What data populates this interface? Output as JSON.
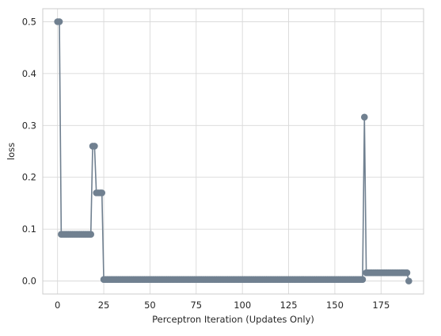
{
  "chart_data": {
    "type": "line",
    "title": "",
    "xlabel": "Perceptron Iteration (Updates Only)",
    "ylabel": "loss",
    "xlim": [
      -8,
      198
    ],
    "ylim": [
      -0.025,
      0.525
    ],
    "xticks": [
      0,
      25,
      50,
      75,
      100,
      125,
      150,
      175
    ],
    "yticks": [
      0.0,
      0.1,
      0.2,
      0.3,
      0.4,
      0.5
    ],
    "grid": true,
    "line_color": "#708090",
    "series": [
      {
        "segments": [
          {
            "from": 0,
            "to": 1,
            "value": 0.5
          },
          {
            "from": 2,
            "to": 18,
            "value": 0.09
          },
          {
            "from": 19,
            "to": 20,
            "value": 0.26
          },
          {
            "from": 21,
            "to": 24,
            "value": 0.17
          },
          {
            "from": 25,
            "to": 165,
            "value": 0.003
          },
          {
            "from": 166,
            "to": 166,
            "value": 0.316
          },
          {
            "from": 167,
            "to": 189,
            "value": 0.016
          },
          {
            "from": 190,
            "to": 190,
            "value": 0.0
          }
        ]
      }
    ]
  }
}
